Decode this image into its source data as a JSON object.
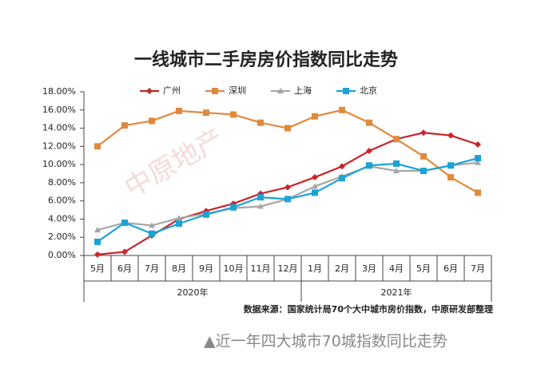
{
  "chart_data": {
    "type": "line",
    "title": "一线城市二手房房价指数同比走势",
    "categories": [
      "5月",
      "6月",
      "7月",
      "8月",
      "9月",
      "10月",
      "11月",
      "12月",
      "1月",
      "2月",
      "3月",
      "4月",
      "5月",
      "6月",
      "7月"
    ],
    "x_groups": [
      {
        "label": "2020年",
        "count": 8
      },
      {
        "label": "2021年",
        "count": 7
      }
    ],
    "series": [
      {
        "name": "广州",
        "color": "#c8252b",
        "marker": "diamond",
        "values": [
          0.1,
          0.4,
          2.2,
          4.0,
          4.9,
          5.7,
          6.8,
          7.5,
          8.6,
          9.8,
          11.5,
          12.8,
          13.5,
          13.2,
          12.2
        ]
      },
      {
        "name": "深圳",
        "color": "#e08a3c",
        "marker": "square",
        "values": [
          12.0,
          14.3,
          14.8,
          15.9,
          15.7,
          15.5,
          14.6,
          14.0,
          15.3,
          16.0,
          14.6,
          12.8,
          10.9,
          8.6,
          6.9
        ]
      },
      {
        "name": "上海",
        "color": "#a6a6a6",
        "marker": "triangle",
        "values": [
          2.8,
          3.6,
          3.3,
          4.1,
          4.6,
          5.2,
          5.4,
          6.2,
          7.6,
          8.7,
          9.8,
          9.3,
          9.3,
          9.9,
          10.2
        ]
      },
      {
        "name": "北京",
        "color": "#1aa3d6",
        "marker": "square",
        "values": [
          1.5,
          3.6,
          2.4,
          3.5,
          4.5,
          5.3,
          6.4,
          6.2,
          6.9,
          8.5,
          9.9,
          10.1,
          9.3,
          9.9,
          10.7
        ]
      }
    ],
    "ylim": [
      0,
      18
    ],
    "yticks": [
      {
        "value": 0,
        "label": "0.00%"
      },
      {
        "value": 2,
        "label": "2.00%"
      },
      {
        "value": 4,
        "label": "4.00%"
      },
      {
        "value": 6,
        "label": "6.00%"
      },
      {
        "value": 8,
        "label": "8.00%"
      },
      {
        "value": 10,
        "label": "10.00%"
      },
      {
        "value": 12,
        "label": "12.00%"
      },
      {
        "value": 14,
        "label": "14.00%"
      },
      {
        "value": 16,
        "label": "16.00%"
      },
      {
        "value": 18,
        "label": "18.00%"
      }
    ],
    "grid": false,
    "legend": "top",
    "source": "数据来源：国家统计局70个大中城市房价指数，中原研发部整理",
    "watermark": "中原地产"
  },
  "caption": "▲近一年四大城市70城指数同比走势"
}
